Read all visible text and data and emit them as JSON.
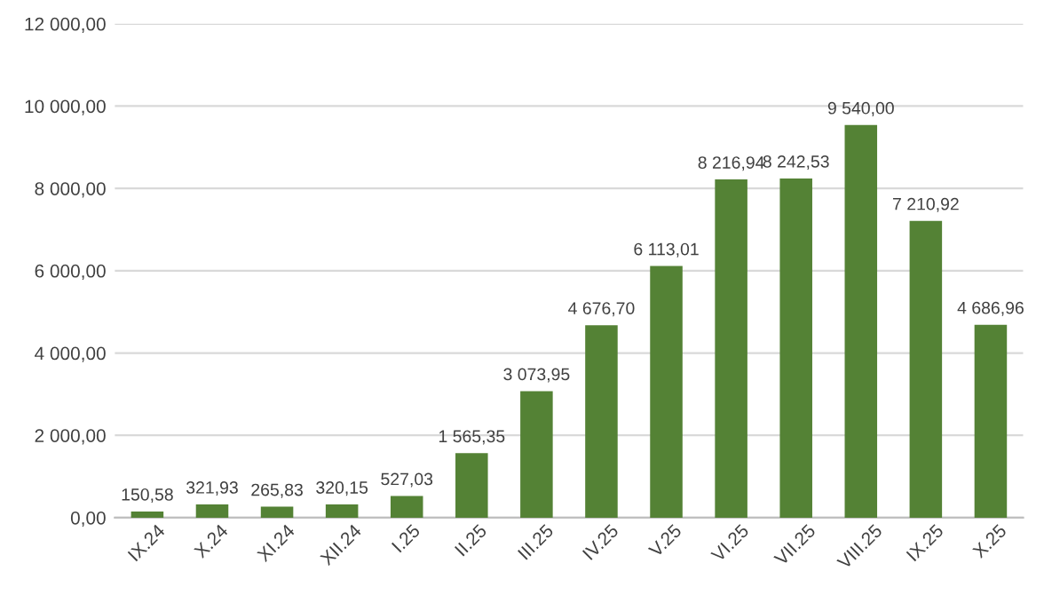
{
  "chart_data": {
    "type": "bar",
    "categories": [
      "IX.24",
      "X.24",
      "XI.24",
      "XII.24",
      "I.25",
      "II.25",
      "III.25",
      "IV.25",
      "V.25",
      "VI.25",
      "VII.25",
      "VIII.25",
      "IX.25",
      "X.25"
    ],
    "values": [
      150.58,
      321.93,
      265.83,
      320.15,
      527.03,
      1565.35,
      3073.95,
      4676.7,
      6113.01,
      8216.94,
      8242.53,
      9540.0,
      7210.92,
      4686.96
    ],
    "value_labels": [
      "150,58",
      "321,93",
      "265,83",
      "320,15",
      "527,03",
      "1 565,35",
      "3 073,95",
      "4 676,70",
      "6 113,01",
      "8 216,94",
      "8 242,53",
      "9 540,00",
      "7 210,92",
      "4 686,96"
    ],
    "color": "#548235",
    "ylim": [
      0,
      12000
    ],
    "yticks": [
      {
        "value": 0,
        "label": "0,00"
      },
      {
        "value": 2000,
        "label": "2 000,00"
      },
      {
        "value": 4000,
        "label": "4 000,00"
      },
      {
        "value": 6000,
        "label": "6 000,00"
      },
      {
        "value": 8000,
        "label": "8 000,00"
      },
      {
        "value": 10000,
        "label": "10 000,00"
      },
      {
        "value": 12000,
        "label": "12 000,00"
      }
    ],
    "grid": "y"
  }
}
